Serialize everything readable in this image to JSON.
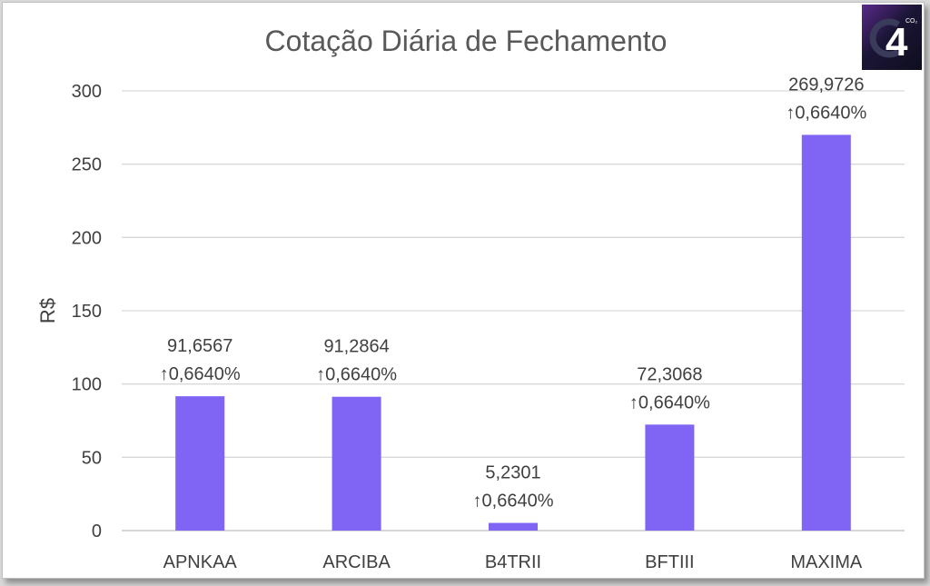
{
  "chart_data": {
    "type": "bar",
    "title": "Cotação Diária de Fechamento",
    "ylabel": "R$",
    "xlabel": "",
    "ylim": [
      0,
      300
    ],
    "yticks": [
      0,
      50,
      100,
      150,
      200,
      250,
      300
    ],
    "grid": true,
    "legend": "none",
    "bar_color": "#8064f4",
    "categories": [
      "APNKAA",
      "ARCIBA",
      "B4TRII",
      "BFTIII",
      "MAXIMA"
    ],
    "values": [
      91.6567,
      91.2864,
      5.2301,
      72.3068,
      269.9726
    ],
    "value_labels": [
      "91,6567",
      "91,2864",
      "5,2301",
      "72,3068",
      "269,9726"
    ],
    "change_labels": [
      "↑0,6640%",
      "↑0,6640%",
      "↑0,6640%",
      "↑0,6640%",
      "↑0,6640%"
    ]
  },
  "logo": {
    "icon": "c4-logo-icon",
    "text": "4",
    "superscript": "CO₂"
  }
}
